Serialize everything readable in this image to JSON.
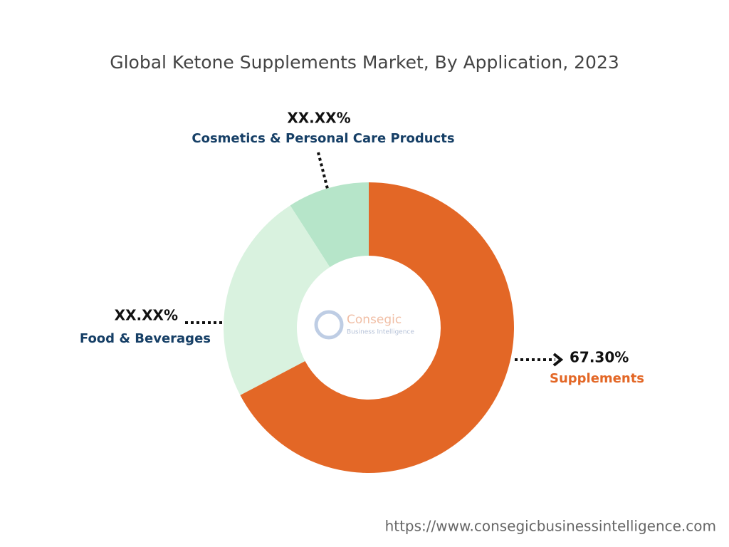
{
  "chart_data": {
    "type": "donut",
    "title": "Global Ketone Supplements Market, By Application, 2023",
    "categories": [
      "Supplements",
      "Food & Beverages",
      "Cosmetics & Personal Care Products"
    ],
    "values": [
      67.3,
      23.6,
      9.1
    ],
    "value_labels": [
      "67.30%",
      "XX.XX%",
      "XX.XX%"
    ],
    "colors": [
      "#e36726",
      "#d9f2df",
      "#b6e5c9"
    ],
    "label_colors": [
      "#e36726",
      "#163f66",
      "#163f66"
    ]
  },
  "logo": {
    "name": "Consegic",
    "tagline": "Business Intelligence"
  },
  "footer": "https://www.consegicbusinessintelligence.com"
}
